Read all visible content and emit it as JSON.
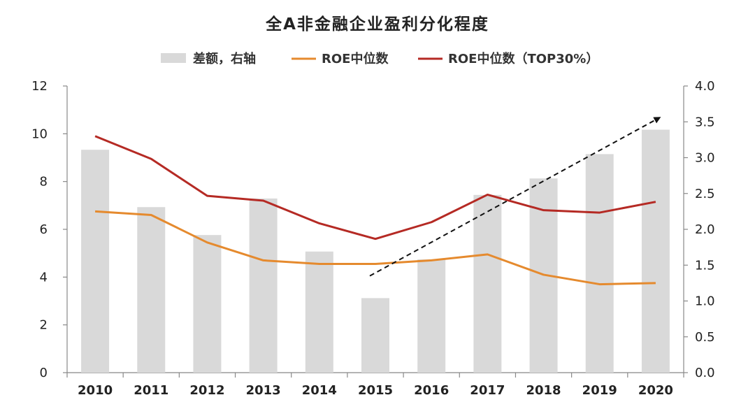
{
  "chart_data": {
    "type": "bar",
    "title": "全A非金融企业盈利分化程度",
    "categories": [
      "2010",
      "2011",
      "2012",
      "2013",
      "2014",
      "2015",
      "2016",
      "2017",
      "2018",
      "2019",
      "2020"
    ],
    "y_left": {
      "ylim": [
        0,
        12
      ],
      "ticks": [
        "0",
        "2",
        "4",
        "6",
        "8",
        "10",
        "12"
      ]
    },
    "y_right": {
      "ylim": [
        0,
        4.0
      ],
      "ticks": [
        "0.0",
        "0.5",
        "1.0",
        "1.5",
        "2.0",
        "2.5",
        "3.0",
        "3.5",
        "4.0"
      ]
    },
    "legend_position": "top-center",
    "series": [
      {
        "name": "差额，右轴",
        "kind": "bar",
        "axis": "right",
        "color": "#d9d9d9",
        "values": [
          3.11,
          2.31,
          1.92,
          2.43,
          1.69,
          1.04,
          1.58,
          2.48,
          2.71,
          3.05,
          3.39
        ]
      },
      {
        "name": "ROE中位数",
        "kind": "line",
        "axis": "left",
        "color": "#e58a2e",
        "values": [
          6.75,
          6.6,
          5.45,
          4.7,
          4.55,
          4.55,
          4.7,
          4.95,
          4.1,
          3.7,
          3.75
        ]
      },
      {
        "name": "ROE中位数（TOP30%）",
        "kind": "line",
        "axis": "left",
        "color": "#b52a24",
        "values": [
          9.9,
          8.95,
          7.4,
          7.2,
          6.25,
          5.6,
          6.3,
          7.45,
          6.8,
          6.7,
          7.15
        ]
      }
    ],
    "annotations": [
      {
        "kind": "dashed-arrow",
        "description": "trend arrow",
        "from": {
          "x": "2015",
          "y_right": 1.35
        },
        "to": {
          "x": "2020",
          "y_right": 3.55
        }
      }
    ]
  }
}
